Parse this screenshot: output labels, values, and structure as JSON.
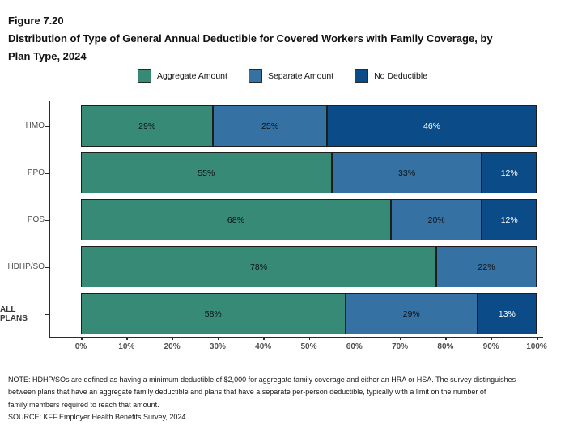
{
  "header": {
    "figure_number": "Figure 7.20",
    "title": "Distribution of Type of General Annual Deductible for Covered Workers with Family Coverage, by Plan Type, 2024"
  },
  "chart_data": {
    "type": "bar",
    "variant": "horizontal-stacked",
    "title": "Distribution of Type of General Annual Deductible for Covered Workers with Family Coverage, by Plan Type, 2024",
    "categories": [
      "HMO",
      "PPO",
      "POS",
      "HDHP/SO",
      "ALL PLANS"
    ],
    "bold_categories": [
      "ALL PLANS"
    ],
    "series": [
      {
        "name": "Aggregate Amount",
        "color": "#378a76",
        "label_color": "#111111",
        "values": [
          29,
          55,
          68,
          78,
          58
        ]
      },
      {
        "name": "Separate Amount",
        "color": "#3572a3",
        "label_color": "#111111",
        "values": [
          25,
          33,
          20,
          22,
          29
        ]
      },
      {
        "name": "No Deductible",
        "color": "#0b4b87",
        "label_color": "#ffffff",
        "values": [
          46,
          12,
          12,
          0,
          13
        ]
      }
    ],
    "value_suffix": "%",
    "xlim": [
      0,
      100
    ],
    "x_ticks": [
      "0%",
      "10%",
      "20%",
      "30%",
      "40%",
      "50%",
      "60%",
      "70%",
      "80%",
      "90%",
      "100%"
    ],
    "legend_position": "top",
    "grid": false,
    "axis_color": "#2a2a2a"
  },
  "footer": {
    "note": "NOTE: HDHP/SOs are defined as having a minimum deductible of $2,000 for aggregate family coverage and either an HRA or HSA. The survey distinguishes\nbetween plans that have an aggregate family deductible and plans that have a separate per-person deductible, typically with a limit on the number of\nfamily members required to reach that amount.",
    "source": "SOURCE: KFF Employer Health Benefits Survey, 2024"
  }
}
